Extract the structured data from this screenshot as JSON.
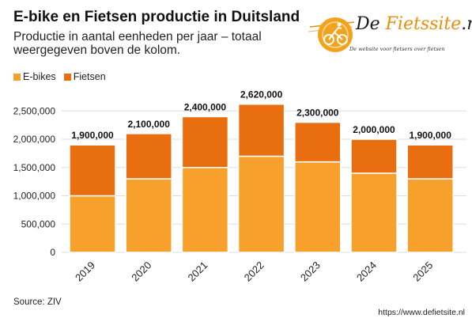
{
  "chart_data": {
    "type": "bar",
    "stacked": true,
    "title": "E-bike en Fietsen productie in Duitsland",
    "subtitle": "Productie in aantal eenheden per jaar  – totaal weergegeven boven de kolom.",
    "categories": [
      "2019",
      "2020",
      "2021",
      "2022",
      "2023",
      "2024",
      "2025"
    ],
    "series": [
      {
        "name": "E-bikes",
        "color": "#f7a02b",
        "values": [
          1000000,
          1300000,
          1500000,
          1700000,
          1600000,
          1400000,
          1300000
        ]
      },
      {
        "name": "Fietsen",
        "color": "#e86e0f",
        "values": [
          900000,
          800000,
          900000,
          920000,
          700000,
          600000,
          600000
        ]
      }
    ],
    "totals": [
      1900000,
      2100000,
      2400000,
      2620000,
      2300000,
      2000000,
      1900000
    ],
    "total_labels": [
      "1,900,000",
      "2,100,000",
      "2,400,000",
      "2,620,000",
      "2,300,000",
      "2,000,000",
      "1,900,000"
    ],
    "y_ticks": [
      0,
      500000,
      1000000,
      1500000,
      2000000,
      2500000
    ],
    "y_tick_labels": [
      "0",
      "500,000",
      "1,000,000",
      "1,500,000",
      "2,000,000",
      "2,500,000"
    ],
    "ylim": [
      0,
      2700000
    ],
    "legend_position": "top-left",
    "grid": true,
    "xlabel": "",
    "ylabel": ""
  },
  "logo": {
    "text_prefix": "De ",
    "text_accent": "Fietssite",
    "text_suffix": ".nl",
    "tagline": "De website voor fietsers over fietsen"
  },
  "source": "Source: ZIV",
  "url": "https://www.defietsite.nl"
}
